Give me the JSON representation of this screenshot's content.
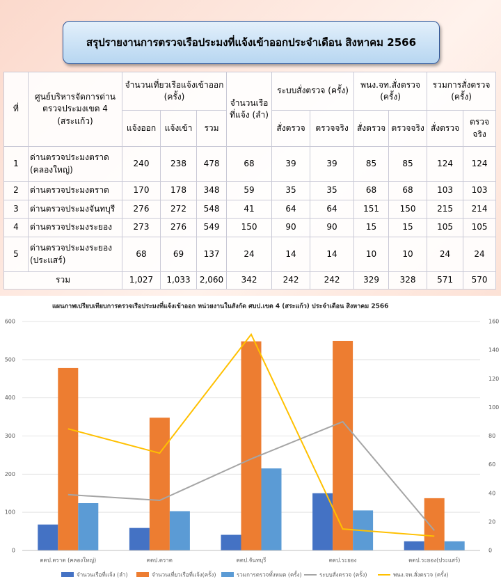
{
  "title": "สรุปรายงานการตรวจเรือประมงที่แจ้งเข้าออกประจำเดือน สิงหาคม 2566",
  "table": {
    "header": [
      {
        "label": "ที่"
      },
      {
        "label": "ศูนย์บริหารจัดการด่านตรวจประมงเขต 4 (สระแก้ว)"
      },
      {
        "label": "จำนวนเที่ยวเรือแจ้งเข้าออก (ครั้ง)",
        "sub": [
          "แจ้งออก",
          "แจ้งเข้า",
          "รวม"
        ]
      },
      {
        "label": "จำนวนเรือที่แจ้ง (ลำ)"
      },
      {
        "label": "ระบบสั่งตรวจ (ครั้ง)",
        "sub": [
          "สั่งตรวจ",
          "ตรวจจริง"
        ]
      },
      {
        "label": "พนง.จท.สั่งตรวจ (ครั้ง)",
        "sub": [
          "สั่งตรวจ",
          "ตรวจจริง"
        ]
      },
      {
        "label": "รวมการสั่งตรวจ (ครั้ง)",
        "sub": [
          "สั่งตรวจ",
          "ตรวจจริง"
        ]
      }
    ],
    "rows": [
      [
        "1",
        "ด่านตรวจประมงตราด (คลองใหญ่)",
        240,
        238,
        478,
        68,
        39,
        39,
        85,
        85,
        124,
        124
      ],
      [
        "2",
        "ด่านตรวจประมงตราด",
        170,
        178,
        348,
        59,
        35,
        35,
        68,
        68,
        103,
        103
      ],
      [
        "3",
        "ด่านตรวจประมงจันทบุรี",
        276,
        272,
        548,
        41,
        64,
        64,
        151,
        150,
        215,
        214
      ],
      [
        "4",
        "ด่านตรวจประมงระยอง",
        273,
        276,
        549,
        150,
        90,
        90,
        15,
        15,
        105,
        105
      ],
      [
        "5",
        "ด่านตรวจประมงระยอง (ประแสร์)",
        68,
        69,
        137,
        24,
        14,
        14,
        10,
        10,
        24,
        24
      ]
    ],
    "total": [
      "รวม",
      "1,027",
      "1,033",
      "2,060",
      342,
      242,
      242,
      329,
      328,
      571,
      570
    ]
  },
  "chart_data": {
    "type": "bar",
    "title": "แผนภาพเปรียบเทียบการตรวจเรือประมงที่แจ้งเข้าออก หน่วยงานในสังกัด ศบป.เขต 4 (สระแก้ว) ประจำเดือน สิงหาคม 2566",
    "categories": [
      "ตดป.ตราด (คลองใหญ่)",
      "ตดป.ตราด",
      "ตดป.จันทบุรี",
      "ตดป.ระยอง",
      "ตดป.ระยอง(ประแสร์)"
    ],
    "series": [
      {
        "name": "จำนวนเรือที่แจ้ง (ลำ)",
        "type": "bar",
        "color": "#4472c4",
        "values": [
          68,
          59,
          41,
          150,
          24
        ]
      },
      {
        "name": "จำนวนเที่ยวเรือที่แจ้ง(ครั้ง)",
        "type": "bar",
        "color": "#ed7d31",
        "values": [
          478,
          348,
          548,
          549,
          137
        ]
      },
      {
        "name": "รวมการตรวจทั้งหมด (ครั้ง)",
        "type": "bar",
        "color": "#5b9bd5",
        "values": [
          124,
          103,
          215,
          105,
          24
        ]
      },
      {
        "name": "ระบบสั่งตรวจ (ครั้ง)",
        "type": "line",
        "axis": "y2",
        "color": "#a5a5a5",
        "values": [
          39,
          35,
          64,
          90,
          14
        ]
      },
      {
        "name": "พนง.จท.สั่งตรวจ (ครั้ง)",
        "type": "line",
        "axis": "y2",
        "color": "#ffc000",
        "values": [
          85,
          68,
          151,
          15,
          10
        ]
      }
    ],
    "ylim": [
      0,
      600
    ],
    "yticks": [
      0,
      100,
      200,
      300,
      400,
      500,
      600
    ],
    "y2lim": [
      0,
      160
    ],
    "y2ticks": [
      0,
      20,
      40,
      60,
      80,
      100,
      120,
      140,
      160
    ],
    "grid": true
  }
}
